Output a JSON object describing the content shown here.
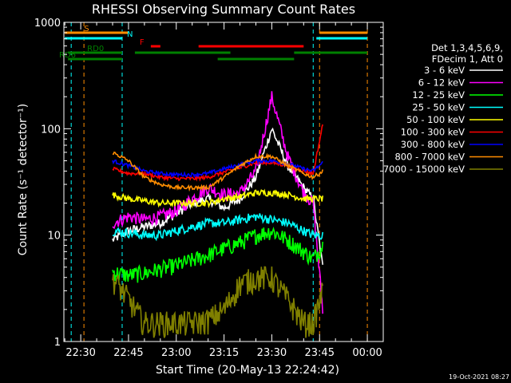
{
  "chart_data": {
    "type": "line",
    "title": "RHESSI Observing Summary Count Rates",
    "xlabel": "Start Time (20-May-13 22:24:42)",
    "ylabel": "Count Rate (s⁻¹ detector⁻¹)",
    "y_scale": "log",
    "ylim": [
      1,
      1000
    ],
    "x_ticks": [
      "22:30",
      "22:45",
      "23:00",
      "23:15",
      "23:30",
      "23:45",
      "00:00"
    ],
    "x_range": [
      "22:24:42",
      "00:05:00"
    ],
    "y_ticks": [
      "1",
      "10",
      "100",
      "1000"
    ],
    "legend_header": [
      "Det 1,3,4,5,6,9,",
      "FDecim 1, Att 0"
    ],
    "legend_position": "right",
    "timestamp": "19-Oct-2021 08:27",
    "flags": [
      {
        "label": "S",
        "color": "#ff8c00",
        "segments": [
          [
            "22:25",
            "22:45"
          ],
          [
            "23:45",
            "00:00"
          ]
        ]
      },
      {
        "label": "N",
        "color": "#00ffff",
        "segments": [
          [
            "22:25",
            "22:43"
          ],
          [
            "23:44",
            "00:00"
          ]
        ]
      },
      {
        "label": "F",
        "color": "#ff0000",
        "segments": [
          [
            "22:52",
            "22:55"
          ],
          [
            "23:07",
            "23:40"
          ]
        ]
      },
      {
        "label": "RD0",
        "color": "#008000",
        "segments": [
          [
            "22:26",
            "22:43"
          ],
          [
            "22:47",
            "23:17"
          ],
          [
            "23:37",
            "00:00"
          ]
        ]
      },
      {
        "label": "RD6",
        "color": "#008000",
        "segments": [
          [
            "22:26",
            "22:43"
          ],
          [
            "23:13",
            "23:37"
          ]
        ]
      }
    ],
    "vlines": [
      {
        "time": "22:27",
        "color": "#00ffff"
      },
      {
        "time": "22:31",
        "color": "#ff8c00"
      },
      {
        "time": "22:43",
        "color": "#00ffff"
      },
      {
        "time": "23:43",
        "color": "#00ffff"
      },
      {
        "time": "23:45",
        "color": "#ff8c00"
      },
      {
        "time": "00:00",
        "color": "#ff8c00"
      }
    ],
    "data_start": "22:40",
    "data_end": "23:46",
    "x": [
      "22:40",
      "22:45",
      "22:50",
      "22:55",
      "23:00",
      "23:05",
      "23:10",
      "23:15",
      "23:20",
      "23:25",
      "23:30",
      "23:35",
      "23:40",
      "23:43",
      "23:46"
    ],
    "series": [
      {
        "name": "3 - 6 keV",
        "color": "#ffffff",
        "values": [
          9,
          11,
          12,
          13,
          16,
          20,
          22,
          18,
          22,
          35,
          100,
          45,
          28,
          22,
          5
        ]
      },
      {
        "name": "6 - 12 keV",
        "color": "#ff00ff",
        "values": [
          13,
          15,
          14,
          15,
          17,
          22,
          28,
          24,
          25,
          40,
          200,
          55,
          25,
          20,
          2
        ]
      },
      {
        "name": "12 - 25 keV",
        "color": "#00ff00",
        "values": [
          4.5,
          4.2,
          4.4,
          4.8,
          5.2,
          5.8,
          6.5,
          7.5,
          8.5,
          10,
          11,
          9,
          7,
          6,
          8
        ]
      },
      {
        "name": "25 - 50 keV",
        "color": "#00ffff",
        "values": [
          11,
          10.5,
          10,
          10,
          11,
          12,
          13,
          13,
          14,
          15,
          14,
          13,
          11,
          10,
          10
        ]
      },
      {
        "name": "50 - 100 keV",
        "color": "#ffff00",
        "values": [
          24,
          22,
          21,
          20,
          20,
          20,
          20,
          22,
          23,
          25,
          25,
          24,
          22,
          22,
          22
        ]
      },
      {
        "name": "100 - 300 keV",
        "color": "#ff0000",
        "values": [
          42,
          38,
          38,
          35,
          34,
          34,
          35,
          39,
          43,
          48,
          48,
          45,
          40,
          38,
          110
        ]
      },
      {
        "name": "300 - 800 keV",
        "color": "#0000ff",
        "values": [
          50,
          45,
          40,
          38,
          37,
          37,
          38,
          42,
          46,
          50,
          50,
          47,
          42,
          40,
          48
        ]
      },
      {
        "name": "800 - 7000 keV",
        "color": "#ff8c00",
        "values": [
          60,
          50,
          35,
          30,
          28,
          28,
          28,
          35,
          45,
          55,
          55,
          45,
          38,
          35,
          40
        ]
      },
      {
        "name": "7000 - 15000 keV",
        "color": "#808000",
        "values": [
          4,
          2.5,
          1.5,
          1.5,
          1.5,
          1.5,
          1.6,
          2,
          3.5,
          4,
          4,
          2.5,
          1.5,
          1.5,
          3
        ]
      }
    ]
  }
}
